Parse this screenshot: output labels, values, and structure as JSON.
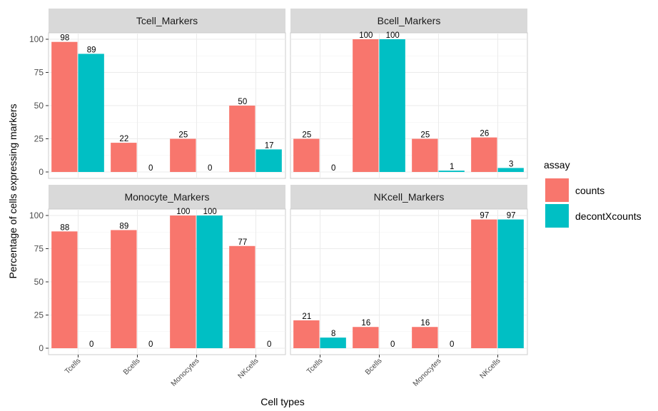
{
  "chart_data": {
    "type": "bar",
    "xlabel": "Cell types",
    "ylabel": "Percentage of cells expressing markers",
    "categories": [
      "Tcells",
      "Bcells",
      "Monocytes",
      "NKcells"
    ],
    "y_ticks": [
      "0",
      "25",
      "50",
      "75",
      "100"
    ],
    "ylim": [
      0,
      100
    ],
    "grid": true,
    "legend": {
      "title": "assay",
      "position": "right",
      "entries": [
        {
          "label": "counts",
          "color": "#F8766D"
        },
        {
          "label": "decontXcounts",
          "color": "#00BFC4"
        }
      ]
    },
    "panels": [
      {
        "title": "Tcell_Markers",
        "series": [
          {
            "name": "counts",
            "values": [
              98,
              22,
              25,
              50
            ]
          },
          {
            "name": "decontXcounts",
            "values": [
              89,
              0,
              0,
              17
            ]
          }
        ]
      },
      {
        "title": "Bcell_Markers",
        "series": [
          {
            "name": "counts",
            "values": [
              25,
              100,
              25,
              26
            ]
          },
          {
            "name": "decontXcounts",
            "values": [
              0,
              100,
              1,
              3
            ]
          }
        ]
      },
      {
        "title": "Monocyte_Markers",
        "series": [
          {
            "name": "counts",
            "values": [
              88,
              89,
              100,
              77
            ]
          },
          {
            "name": "decontXcounts",
            "values": [
              0,
              0,
              100,
              0
            ]
          }
        ]
      },
      {
        "title": "NKcell_Markers",
        "series": [
          {
            "name": "counts",
            "values": [
              21,
              16,
              16,
              97
            ]
          },
          {
            "name": "decontXcounts",
            "values": [
              8,
              0,
              0,
              97
            ]
          }
        ]
      }
    ]
  }
}
